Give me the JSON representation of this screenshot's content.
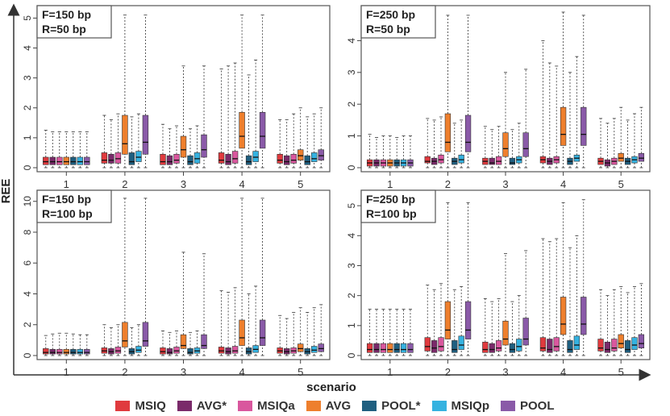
{
  "chart_data": {
    "type": "boxplot",
    "xlabel": "scenario",
    "ylabel": "REE",
    "categories": [
      "1",
      "2",
      "3",
      "4",
      "5"
    ],
    "series_names": [
      "MSIQ",
      "AVG*",
      "MSIQa",
      "AVG",
      "POOL*",
      "MSIQp",
      "POOL"
    ],
    "colors": [
      "#e03a3e",
      "#7a2a6a",
      "#d9579e",
      "#ee7f2d",
      "#1f5f80",
      "#35b2e0",
      "#8a5aa8"
    ],
    "panels": [
      {
        "title_lines": [
          "F=150 bp",
          "R=50 bp"
        ],
        "ylim": [
          0,
          5.2
        ],
        "yticks": [
          0,
          1,
          2,
          3,
          4,
          5
        ],
        "boxes": [
          [
            [
              0,
              0.1,
              0.2,
              0.35,
              1.25
            ],
            [
              0,
              0.1,
              0.2,
              0.35,
              1.2
            ],
            [
              0,
              0.1,
              0.2,
              0.35,
              1.2
            ],
            [
              0,
              0.1,
              0.2,
              0.35,
              1.2
            ],
            [
              0,
              0.1,
              0.2,
              0.35,
              1.2
            ],
            [
              0,
              0.1,
              0.2,
              0.35,
              1.2
            ],
            [
              0,
              0.1,
              0.2,
              0.35,
              1.2
            ]
          ],
          [
            [
              0,
              0.15,
              0.25,
              0.5,
              1.75
            ],
            [
              0,
              0.15,
              0.25,
              0.45,
              1.6
            ],
            [
              0,
              0.15,
              0.3,
              0.5,
              1.8
            ],
            [
              0,
              0.45,
              0.8,
              1.75,
              5.1
            ],
            [
              0,
              0.1,
              0.2,
              0.5,
              1.7
            ],
            [
              0,
              0.2,
              0.35,
              0.55,
              1.8
            ],
            [
              0,
              0.45,
              0.85,
              1.75,
              5.1
            ]
          ],
          [
            [
              0,
              0.1,
              0.2,
              0.45,
              1.45
            ],
            [
              0,
              0.1,
              0.2,
              0.4,
              1.3
            ],
            [
              0,
              0.15,
              0.25,
              0.45,
              1.4
            ],
            [
              0,
              0.35,
              0.6,
              1.05,
              3.4
            ],
            [
              0,
              0.1,
              0.2,
              0.4,
              1.3
            ],
            [
              0,
              0.15,
              0.3,
              0.5,
              1.4
            ],
            [
              0,
              0.35,
              0.6,
              1.1,
              3.4
            ]
          ],
          [
            [
              0,
              0.15,
              0.25,
              0.5,
              3.3
            ],
            [
              0,
              0.1,
              0.2,
              0.45,
              3.4
            ],
            [
              0,
              0.15,
              0.3,
              0.55,
              3.5
            ],
            [
              0,
              0.65,
              1.05,
              1.85,
              5.1
            ],
            [
              0,
              0.1,
              0.2,
              0.4,
              3.1
            ],
            [
              0,
              0.2,
              0.35,
              0.55,
              3.6
            ],
            [
              0,
              0.65,
              1.05,
              1.85,
              5.1
            ]
          ],
          [
            [
              0,
              0.15,
              0.25,
              0.45,
              1.6
            ],
            [
              0,
              0.1,
              0.2,
              0.4,
              1.6
            ],
            [
              0,
              0.15,
              0.25,
              0.45,
              1.8
            ],
            [
              0,
              0.25,
              0.4,
              0.6,
              2.0
            ],
            [
              0,
              0.1,
              0.2,
              0.4,
              1.7
            ],
            [
              0,
              0.2,
              0.3,
              0.5,
              1.8
            ],
            [
              0,
              0.25,
              0.4,
              0.6,
              2.0
            ]
          ]
        ]
      },
      {
        "title_lines": [
          "F=250 bp",
          "R=50 bp"
        ],
        "ylim": [
          0,
          4.9
        ],
        "yticks": [
          0,
          1,
          2,
          3,
          4
        ],
        "boxes": [
          [
            [
              0,
              0.05,
              0.15,
              0.25,
              1.05
            ],
            [
              0,
              0.05,
              0.15,
              0.25,
              0.95
            ],
            [
              0,
              0.05,
              0.15,
              0.25,
              1.0
            ],
            [
              0,
              0.05,
              0.15,
              0.25,
              1.0
            ],
            [
              0,
              0.05,
              0.15,
              0.25,
              0.95
            ],
            [
              0,
              0.05,
              0.15,
              0.25,
              1.0
            ],
            [
              0,
              0.05,
              0.15,
              0.25,
              1.0
            ]
          ],
          [
            [
              0,
              0.15,
              0.2,
              0.35,
              1.55
            ],
            [
              0,
              0.1,
              0.2,
              0.3,
              1.5
            ],
            [
              0,
              0.15,
              0.25,
              0.4,
              1.6
            ],
            [
              0,
              0.5,
              0.8,
              1.7,
              4.8
            ],
            [
              0,
              0.1,
              0.2,
              0.3,
              1.4
            ],
            [
              0,
              0.15,
              0.25,
              0.4,
              1.5
            ],
            [
              0,
              0.5,
              0.8,
              1.65,
              4.8
            ]
          ],
          [
            [
              0,
              0.1,
              0.2,
              0.3,
              1.3
            ],
            [
              0,
              0.1,
              0.15,
              0.3,
              1.2
            ],
            [
              0,
              0.1,
              0.2,
              0.35,
              1.3
            ],
            [
              0,
              0.35,
              0.6,
              1.1,
              3.0
            ],
            [
              0,
              0.1,
              0.15,
              0.3,
              1.2
            ],
            [
              0,
              0.15,
              0.25,
              0.35,
              1.4
            ],
            [
              0,
              0.35,
              0.6,
              1.1,
              3.1
            ]
          ],
          [
            [
              0,
              0.15,
              0.25,
              0.35,
              4.0
            ],
            [
              0,
              0.1,
              0.2,
              0.3,
              3.3
            ],
            [
              0,
              0.15,
              0.25,
              0.35,
              3.2
            ],
            [
              0,
              0.7,
              1.05,
              1.9,
              4.9
            ],
            [
              0,
              0.1,
              0.2,
              0.3,
              3.0
            ],
            [
              0,
              0.2,
              0.3,
              0.4,
              3.5
            ],
            [
              0,
              0.7,
              1.05,
              1.9,
              4.8
            ]
          ],
          [
            [
              0,
              0.1,
              0.2,
              0.3,
              1.55
            ],
            [
              0,
              0.05,
              0.15,
              0.25,
              1.4
            ],
            [
              0,
              0.1,
              0.2,
              0.3,
              1.55
            ],
            [
              0,
              0.2,
              0.3,
              0.45,
              1.9
            ],
            [
              0,
              0.1,
              0.2,
              0.3,
              1.5
            ],
            [
              0,
              0.15,
              0.25,
              0.35,
              1.7
            ],
            [
              0,
              0.2,
              0.3,
              0.45,
              1.9
            ]
          ]
        ]
      },
      {
        "title_lines": [
          "F=150 bp",
          "R=100 bp"
        ],
        "ylim": [
          0,
          10.3
        ],
        "yticks": [
          0,
          2,
          4,
          6,
          8,
          10
        ],
        "boxes": [
          [
            [
              0,
              0.1,
              0.2,
              0.45,
              1.3
            ],
            [
              0,
              0.1,
              0.2,
              0.4,
              1.4
            ],
            [
              0,
              0.1,
              0.2,
              0.4,
              1.45
            ],
            [
              0,
              0.1,
              0.2,
              0.4,
              1.45
            ],
            [
              0,
              0.1,
              0.2,
              0.4,
              1.4
            ],
            [
              0,
              0.1,
              0.2,
              0.4,
              1.35
            ],
            [
              0,
              0.1,
              0.2,
              0.4,
              1.35
            ]
          ],
          [
            [
              0,
              0.15,
              0.3,
              0.5,
              2.0
            ],
            [
              0,
              0.1,
              0.25,
              0.45,
              1.8
            ],
            [
              0,
              0.15,
              0.3,
              0.55,
              2.0
            ],
            [
              0,
              0.55,
              0.95,
              2.15,
              10.2
            ],
            [
              0,
              0.1,
              0.25,
              0.45,
              1.8
            ],
            [
              0,
              0.2,
              0.35,
              0.6,
              2.0
            ],
            [
              0,
              0.6,
              0.95,
              2.15,
              10.2
            ]
          ],
          [
            [
              0,
              0.1,
              0.25,
              0.5,
              1.6
            ],
            [
              0,
              0.1,
              0.2,
              0.45,
              1.5
            ],
            [
              0,
              0.15,
              0.3,
              0.55,
              1.6
            ],
            [
              0,
              0.45,
              0.65,
              1.35,
              6.7
            ],
            [
              0,
              0.1,
              0.2,
              0.45,
              1.5
            ],
            [
              0,
              0.15,
              0.3,
              0.5,
              1.6
            ],
            [
              0,
              0.45,
              0.65,
              1.35,
              6.6
            ]
          ],
          [
            [
              0,
              0.15,
              0.3,
              0.55,
              4.2
            ],
            [
              0,
              0.1,
              0.25,
              0.5,
              4.1
            ],
            [
              0,
              0.15,
              0.3,
              0.6,
              4.4
            ],
            [
              0,
              0.65,
              1.15,
              2.3,
              10.2
            ],
            [
              0,
              0.1,
              0.25,
              0.5,
              4.0
            ],
            [
              0,
              0.2,
              0.4,
              0.65,
              4.5
            ],
            [
              0,
              0.65,
              1.15,
              2.3,
              10.2
            ]
          ],
          [
            [
              0,
              0.15,
              0.3,
              0.5,
              2.6
            ],
            [
              0,
              0.1,
              0.25,
              0.45,
              2.4
            ],
            [
              0,
              0.15,
              0.3,
              0.5,
              2.8
            ],
            [
              0,
              0.25,
              0.45,
              0.75,
              3.1
            ],
            [
              0,
              0.1,
              0.25,
              0.45,
              2.8
            ],
            [
              0,
              0.2,
              0.35,
              0.6,
              3.1
            ],
            [
              0,
              0.25,
              0.45,
              0.75,
              3.3
            ]
          ]
        ]
      },
      {
        "title_lines": [
          "F=250 bp",
          "R=100 bp"
        ],
        "ylim": [
          0,
          5.3
        ],
        "yticks": [
          0,
          1,
          2,
          3,
          4,
          5
        ],
        "boxes": [
          [
            [
              0,
              0.1,
              0.2,
              0.4,
              1.55
            ],
            [
              0,
              0.1,
              0.2,
              0.4,
              1.55
            ],
            [
              0,
              0.1,
              0.2,
              0.4,
              1.55
            ],
            [
              0,
              0.1,
              0.2,
              0.4,
              1.55
            ],
            [
              0,
              0.1,
              0.2,
              0.4,
              1.55
            ],
            [
              0,
              0.1,
              0.2,
              0.4,
              1.55
            ],
            [
              0,
              0.1,
              0.2,
              0.4,
              1.55
            ]
          ],
          [
            [
              0,
              0.15,
              0.3,
              0.6,
              2.35
            ],
            [
              0,
              0.1,
              0.25,
              0.5,
              2.2
            ],
            [
              0,
              0.15,
              0.3,
              0.6,
              2.4
            ],
            [
              0,
              0.55,
              0.85,
              1.8,
              5.1
            ],
            [
              0,
              0.1,
              0.2,
              0.5,
              2.2
            ],
            [
              0,
              0.2,
              0.35,
              0.65,
              2.3
            ],
            [
              0,
              0.55,
              0.85,
              1.8,
              5.1
            ]
          ],
          [
            [
              0,
              0.1,
              0.2,
              0.45,
              1.9
            ],
            [
              0,
              0.1,
              0.2,
              0.4,
              1.8
            ],
            [
              0,
              0.15,
              0.25,
              0.5,
              1.9
            ],
            [
              0,
              0.35,
              0.55,
              1.15,
              3.4
            ],
            [
              0,
              0.1,
              0.2,
              0.4,
              1.8
            ],
            [
              0,
              0.15,
              0.3,
              0.55,
              2.0
            ],
            [
              0,
              0.35,
              0.55,
              1.25,
              3.5
            ]
          ],
          [
            [
              0,
              0.15,
              0.25,
              0.6,
              3.9
            ],
            [
              0,
              0.1,
              0.2,
              0.55,
              3.8
            ],
            [
              0,
              0.15,
              0.3,
              0.6,
              3.9
            ],
            [
              0,
              0.7,
              1.05,
              1.95,
              5.1
            ],
            [
              0,
              0.1,
              0.2,
              0.5,
              3.6
            ],
            [
              0,
              0.2,
              0.35,
              0.65,
              4.0
            ],
            [
              0,
              0.7,
              1.05,
              1.95,
              5.2
            ]
          ],
          [
            [
              0,
              0.15,
              0.25,
              0.55,
              2.2
            ],
            [
              0,
              0.1,
              0.2,
              0.45,
              2.0
            ],
            [
              0,
              0.15,
              0.25,
              0.55,
              2.2
            ],
            [
              0,
              0.25,
              0.4,
              0.7,
              2.3
            ],
            [
              0,
              0.1,
              0.2,
              0.5,
              2.1
            ],
            [
              0,
              0.2,
              0.35,
              0.6,
              2.3
            ],
            [
              0,
              0.25,
              0.4,
              0.7,
              2.4
            ]
          ]
        ]
      }
    ]
  }
}
